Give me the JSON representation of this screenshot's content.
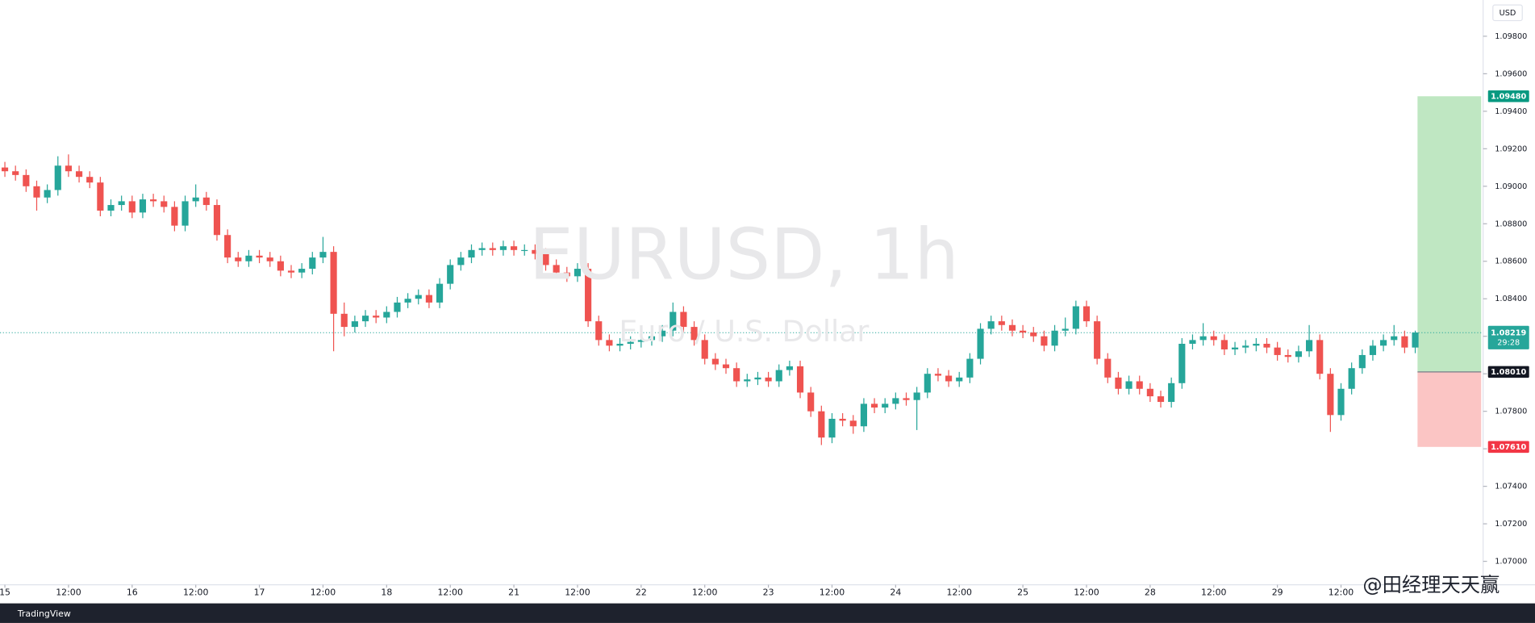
{
  "chart_data": {
    "type": "candlestick",
    "title": "EURUSD, 1h",
    "subtitle": "Euro / U.S. Dollar",
    "currency": "USD",
    "up_color": "#26a69a",
    "down_color": "#ef5350",
    "ylim": [
      1.06875,
      1.09993
    ],
    "yticks": [
      {
        "value": 1.07,
        "label": "1.07000"
      },
      {
        "value": 1.072,
        "label": "1.07200"
      },
      {
        "value": 1.074,
        "label": "1.07400"
      },
      {
        "value": 1.076,
        "label": "1.07600"
      },
      {
        "value": 1.078,
        "label": "1.07800"
      },
      {
        "value": 1.08,
        "label": "1.08000"
      },
      {
        "value": 1.082,
        "label": "1.08200"
      },
      {
        "value": 1.084,
        "label": "1.08400"
      },
      {
        "value": 1.086,
        "label": "1.08600"
      },
      {
        "value": 1.088,
        "label": "1.08800"
      },
      {
        "value": 1.09,
        "label": "1.09000"
      },
      {
        "value": 1.092,
        "label": "1.09200"
      },
      {
        "value": 1.094,
        "label": "1.09400"
      },
      {
        "value": 1.096,
        "label": "1.09600"
      },
      {
        "value": 1.098,
        "label": "1.09800"
      }
    ],
    "xlim": [
      -0.46,
      139.4
    ],
    "xticks": [
      {
        "value": 0,
        "label": "15"
      },
      {
        "value": 6,
        "label": "12:00"
      },
      {
        "value": 12,
        "label": "16"
      },
      {
        "value": 18,
        "label": "12:00"
      },
      {
        "value": 24,
        "label": "17"
      },
      {
        "value": 30,
        "label": "12:00"
      },
      {
        "value": 36,
        "label": "18"
      },
      {
        "value": 42,
        "label": "12:00"
      },
      {
        "value": 48,
        "label": "21"
      },
      {
        "value": 54,
        "label": "12:00"
      },
      {
        "value": 60,
        "label": "22"
      },
      {
        "value": 66,
        "label": "12:00"
      },
      {
        "value": 72,
        "label": "23"
      },
      {
        "value": 78,
        "label": "12:00"
      },
      {
        "value": 84,
        "label": "24"
      },
      {
        "value": 90,
        "label": "12:00"
      },
      {
        "value": 96,
        "label": "25"
      },
      {
        "value": 102,
        "label": "12:00"
      },
      {
        "value": 108,
        "label": "28"
      },
      {
        "value": 114,
        "label": "12:00"
      },
      {
        "value": 120,
        "label": "29"
      },
      {
        "value": 126,
        "label": "12:00"
      }
    ],
    "ohlc": [
      [
        1.091,
        1.0913,
        1.0905,
        1.0908
      ],
      [
        1.0908,
        1.0911,
        1.0903,
        1.0906
      ],
      [
        1.0906,
        1.0909,
        1.0897,
        1.09
      ],
      [
        1.09,
        1.0903,
        1.0887,
        1.0894
      ],
      [
        1.0894,
        1.0901,
        1.0891,
        1.0898
      ],
      [
        1.0898,
        1.0916,
        1.0895,
        1.0911
      ],
      [
        1.0911,
        1.0917,
        1.0905,
        1.0908
      ],
      [
        1.0908,
        1.0911,
        1.0902,
        1.0905
      ],
      [
        1.0905,
        1.0908,
        1.0899,
        1.0902
      ],
      [
        1.0902,
        1.0905,
        1.0884,
        1.0887
      ],
      [
        1.0887,
        1.0893,
        1.0884,
        1.089
      ],
      [
        1.089,
        1.0895,
        1.0887,
        1.0892
      ],
      [
        1.0892,
        1.0895,
        1.0883,
        1.0886
      ],
      [
        1.0886,
        1.0896,
        1.0883,
        1.0893
      ],
      [
        1.0893,
        1.0896,
        1.0889,
        1.0892
      ],
      [
        1.0892,
        1.0895,
        1.0886,
        1.0889
      ],
      [
        1.0889,
        1.0892,
        1.0876,
        1.0879
      ],
      [
        1.0879,
        1.0895,
        1.0876,
        1.0892
      ],
      [
        1.0892,
        1.0901,
        1.0889,
        1.0894
      ],
      [
        1.0894,
        1.0897,
        1.0887,
        1.089
      ],
      [
        1.089,
        1.0893,
        1.0871,
        1.0874
      ],
      [
        1.0874,
        1.0877,
        1.0859,
        1.0862
      ],
      [
        1.0862,
        1.0865,
        1.0857,
        1.086
      ],
      [
        1.086,
        1.0866,
        1.0857,
        1.0863
      ],
      [
        1.0863,
        1.0866,
        1.0859,
        1.0862
      ],
      [
        1.0862,
        1.0865,
        1.0857,
        1.086
      ],
      [
        1.086,
        1.0863,
        1.0852,
        1.0855
      ],
      [
        1.0855,
        1.0858,
        1.0851,
        1.0854
      ],
      [
        1.0854,
        1.0859,
        1.0851,
        1.0856
      ],
      [
        1.0856,
        1.0865,
        1.0853,
        1.0862
      ],
      [
        1.0862,
        1.0873,
        1.0859,
        1.0865
      ],
      [
        1.0865,
        1.0868,
        1.0812,
        1.0832
      ],
      [
        1.0832,
        1.0838,
        1.082,
        1.0825
      ],
      [
        1.0825,
        1.0831,
        1.0822,
        1.0828
      ],
      [
        1.0828,
        1.0834,
        1.0825,
        1.0831
      ],
      [
        1.0831,
        1.0834,
        1.0827,
        1.083
      ],
      [
        1.083,
        1.0836,
        1.0827,
        1.0833
      ],
      [
        1.0833,
        1.0841,
        1.083,
        1.0838
      ],
      [
        1.0838,
        1.0843,
        1.0835,
        1.084
      ],
      [
        1.084,
        1.0845,
        1.0837,
        1.0842
      ],
      [
        1.0842,
        1.0845,
        1.0835,
        1.0838
      ],
      [
        1.0838,
        1.0851,
        1.0835,
        1.0848
      ],
      [
        1.0848,
        1.0861,
        1.0845,
        1.0858
      ],
      [
        1.0858,
        1.0865,
        1.0855,
        1.0862
      ],
      [
        1.0862,
        1.0869,
        1.0859,
        1.0866
      ],
      [
        1.0866,
        1.087,
        1.0863,
        1.0867
      ],
      [
        1.0867,
        1.087,
        1.0863,
        1.0866
      ],
      [
        1.0866,
        1.0871,
        1.0863,
        1.0868
      ],
      [
        1.0868,
        1.0871,
        1.0863,
        1.0866
      ],
      [
        1.0866,
        1.0869,
        1.0863,
        1.0866
      ],
      [
        1.0866,
        1.0869,
        1.0861,
        1.0864
      ],
      [
        1.0864,
        1.0867,
        1.0855,
        1.0858
      ],
      [
        1.0858,
        1.0861,
        1.0851,
        1.0854
      ],
      [
        1.0854,
        1.0857,
        1.0849,
        1.0852
      ],
      [
        1.0852,
        1.0859,
        1.0849,
        1.0856
      ],
      [
        1.0856,
        1.0859,
        1.0825,
        1.0828
      ],
      [
        1.0828,
        1.0831,
        1.0815,
        1.0818
      ],
      [
        1.0818,
        1.0821,
        1.0812,
        1.0815
      ],
      [
        1.0815,
        1.0819,
        1.0812,
        1.0816
      ],
      [
        1.0816,
        1.082,
        1.0813,
        1.0817
      ],
      [
        1.0817,
        1.0821,
        1.0814,
        1.0818
      ],
      [
        1.0818,
        1.0823,
        1.0815,
        1.082
      ],
      [
        1.082,
        1.0826,
        1.0817,
        1.0823
      ],
      [
        1.0823,
        1.0838,
        1.082,
        1.0833
      ],
      [
        1.0833,
        1.0836,
        1.0822,
        1.0825
      ],
      [
        1.0825,
        1.0828,
        1.0815,
        1.0818
      ],
      [
        1.0818,
        1.0821,
        1.0805,
        1.0808
      ],
      [
        1.0808,
        1.0811,
        1.0802,
        1.0805
      ],
      [
        1.0805,
        1.0808,
        1.08,
        1.0803
      ],
      [
        1.0803,
        1.0806,
        1.0793,
        1.0796
      ],
      [
        1.0796,
        1.08,
        1.0793,
        1.0797
      ],
      [
        1.0797,
        1.0801,
        1.0794,
        1.0798
      ],
      [
        1.0798,
        1.0801,
        1.0793,
        1.0796
      ],
      [
        1.0796,
        1.0805,
        1.0793,
        1.0802
      ],
      [
        1.0802,
        1.0807,
        1.0799,
        1.0804
      ],
      [
        1.0804,
        1.0807,
        1.0787,
        1.079
      ],
      [
        1.079,
        1.0793,
        1.0777,
        1.078
      ],
      [
        1.078,
        1.0783,
        1.0762,
        1.0766
      ],
      [
        1.0766,
        1.0779,
        1.0763,
        1.0776
      ],
      [
        1.0776,
        1.0779,
        1.0772,
        1.0775
      ],
      [
        1.0775,
        1.0778,
        1.0768,
        1.0772
      ],
      [
        1.0772,
        1.0787,
        1.0769,
        1.0784
      ],
      [
        1.0784,
        1.0787,
        1.0779,
        1.0782
      ],
      [
        1.0782,
        1.0787,
        1.0779,
        1.0784
      ],
      [
        1.0784,
        1.079,
        1.0781,
        1.0787
      ],
      [
        1.0787,
        1.079,
        1.0783,
        1.0786
      ],
      [
        1.0786,
        1.0793,
        1.077,
        1.079
      ],
      [
        1.079,
        1.0803,
        1.0787,
        1.08
      ],
      [
        1.08,
        1.0803,
        1.0796,
        1.0799
      ],
      [
        1.0799,
        1.0802,
        1.0793,
        1.0796
      ],
      [
        1.0796,
        1.0801,
        1.0793,
        1.0798
      ],
      [
        1.0798,
        1.0811,
        1.0795,
        1.0808
      ],
      [
        1.0808,
        1.0827,
        1.0805,
        1.0824
      ],
      [
        1.0824,
        1.0831,
        1.0821,
        1.0828
      ],
      [
        1.0828,
        1.0831,
        1.0823,
        1.0826
      ],
      [
        1.0826,
        1.0829,
        1.082,
        1.0823
      ],
      [
        1.0823,
        1.0826,
        1.0819,
        1.0822
      ],
      [
        1.0822,
        1.0825,
        1.0817,
        1.082
      ],
      [
        1.082,
        1.0823,
        1.0812,
        1.0815
      ],
      [
        1.0815,
        1.0826,
        1.0812,
        1.0823
      ],
      [
        1.0823,
        1.083,
        1.082,
        1.0824
      ],
      [
        1.0824,
        1.0839,
        1.0821,
        1.0836
      ],
      [
        1.0836,
        1.0839,
        1.0825,
        1.0828
      ],
      [
        1.0828,
        1.0831,
        1.0805,
        1.0808
      ],
      [
        1.0808,
        1.0811,
        1.0795,
        1.0798
      ],
      [
        1.0798,
        1.0801,
        1.0789,
        1.0792
      ],
      [
        1.0792,
        1.0799,
        1.0789,
        1.0796
      ],
      [
        1.0796,
        1.0799,
        1.0789,
        1.0792
      ],
      [
        1.0792,
        1.0795,
        1.0785,
        1.0788
      ],
      [
        1.0788,
        1.0791,
        1.0782,
        1.0785
      ],
      [
        1.0785,
        1.0798,
        1.0782,
        1.0795
      ],
      [
        1.0795,
        1.0819,
        1.0792,
        1.0816
      ],
      [
        1.0816,
        1.0821,
        1.0813,
        1.0818
      ],
      [
        1.0818,
        1.0827,
        1.0815,
        1.082
      ],
      [
        1.082,
        1.0823,
        1.0815,
        1.0818
      ],
      [
        1.0818,
        1.0821,
        1.081,
        1.0813
      ],
      [
        1.0813,
        1.0817,
        1.081,
        1.0814
      ],
      [
        1.0814,
        1.0818,
        1.0811,
        1.0815
      ],
      [
        1.0815,
        1.0819,
        1.0812,
        1.0816
      ],
      [
        1.0816,
        1.0819,
        1.0811,
        1.0814
      ],
      [
        1.0814,
        1.0817,
        1.0807,
        1.081
      ],
      [
        1.081,
        1.0813,
        1.0806,
        1.0809
      ],
      [
        1.0809,
        1.0815,
        1.0806,
        1.0812
      ],
      [
        1.0812,
        1.0826,
        1.0809,
        1.0818
      ],
      [
        1.0818,
        1.0821,
        1.0797,
        1.08
      ],
      [
        1.08,
        1.0803,
        1.0769,
        1.0778
      ],
      [
        1.0778,
        1.0795,
        1.0775,
        1.0792
      ],
      [
        1.0792,
        1.0806,
        1.0789,
        1.0803
      ],
      [
        1.0803,
        1.0813,
        1.08,
        1.081
      ],
      [
        1.081,
        1.0818,
        1.0807,
        1.0815
      ],
      [
        1.0815,
        1.0821,
        1.0812,
        1.0818
      ],
      [
        1.0818,
        1.0826,
        1.0815,
        1.082
      ],
      [
        1.082,
        1.0823,
        1.0811,
        1.0814
      ],
      [
        1.0814,
        1.0823,
        1.0811,
        1.0822
      ]
    ],
    "position": {
      "target": {
        "value": 1.0948,
        "label": "1.09480"
      },
      "entry": {
        "value": 1.0801,
        "label": "1.08010"
      },
      "stop": {
        "value": 1.0761,
        "label": "1.07610"
      }
    },
    "last_price": {
      "value": 1.08219,
      "label": "1.08219"
    },
    "countdown": "29:28"
  },
  "brand": "TradingView",
  "watermark": "@田经理天天赢"
}
